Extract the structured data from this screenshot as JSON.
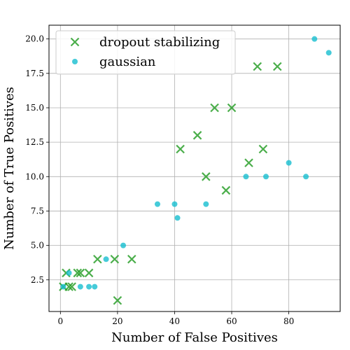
{
  "chart_data": {
    "type": "scatter",
    "title": "",
    "xlabel": "Number of False Positives",
    "ylabel": "Number of True Positives",
    "xlim": [
      -4,
      98
    ],
    "ylim": [
      0.2,
      21
    ],
    "xticks": [
      0,
      20,
      40,
      60,
      80
    ],
    "yticks": [
      2.5,
      5.0,
      7.5,
      10.0,
      12.5,
      15.0,
      17.5,
      20.0
    ],
    "xtick_labels": [
      "0",
      "20",
      "40",
      "60",
      "80"
    ],
    "ytick_labels": [
      "2.5",
      "5.0",
      "7.5",
      "10.0",
      "12.5",
      "15.0",
      "17.5",
      "20.0"
    ],
    "grid": true,
    "legend_position": "top-left",
    "series": [
      {
        "name": "dropout stabilizing",
        "marker": "x",
        "color": "#2ca02c",
        "points": [
          [
            1,
            2
          ],
          [
            2,
            3
          ],
          [
            3,
            2
          ],
          [
            4,
            2
          ],
          [
            6,
            3
          ],
          [
            7,
            3
          ],
          [
            10,
            3
          ],
          [
            13,
            4
          ],
          [
            19,
            4
          ],
          [
            20,
            1
          ],
          [
            25,
            4
          ],
          [
            42,
            12
          ],
          [
            48,
            13
          ],
          [
            51,
            10
          ],
          [
            54,
            15
          ],
          [
            58,
            9
          ],
          [
            60,
            15
          ],
          [
            66,
            11
          ],
          [
            69,
            18
          ],
          [
            71,
            12
          ],
          [
            76,
            18
          ]
        ]
      },
      {
        "name": "gaussian",
        "marker": "o",
        "color": "#17becf",
        "points": [
          [
            1,
            2
          ],
          [
            3,
            3
          ],
          [
            7,
            2
          ],
          [
            10,
            2
          ],
          [
            12,
            2
          ],
          [
            16,
            4
          ],
          [
            22,
            5
          ],
          [
            34,
            8
          ],
          [
            40,
            8
          ],
          [
            41,
            7
          ],
          [
            51,
            8
          ],
          [
            65,
            10
          ],
          [
            72,
            10
          ],
          [
            80,
            11
          ],
          [
            86,
            10
          ],
          [
            89,
            20
          ],
          [
            94,
            19
          ]
        ]
      }
    ]
  }
}
